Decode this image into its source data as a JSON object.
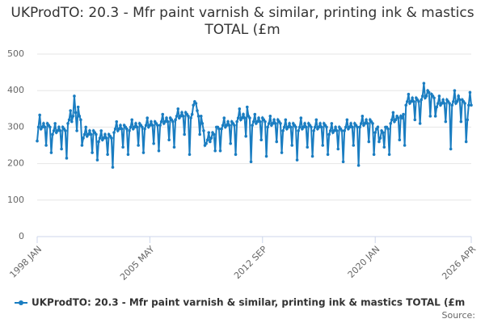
{
  "chart_data": {
    "type": "line",
    "title": "UKProdTO: 20.3 - Mfr paint varnish & similar, printing ink & mastics TOTAL (£m",
    "source": "Source:",
    "categories": [
      "1998 JAN",
      null,
      null,
      null,
      null,
      null,
      null,
      null,
      null,
      null,
      null,
      null,
      null,
      null,
      null,
      null,
      null,
      null,
      null,
      null,
      null,
      null,
      null,
      null,
      null,
      null,
      null,
      null,
      null,
      null,
      null,
      null,
      null,
      null,
      null,
      null,
      null,
      null,
      null,
      null,
      null,
      null,
      null,
      null,
      null,
      null,
      null,
      null,
      null,
      null,
      null,
      null,
      null,
      null,
      null,
      null,
      null,
      null,
      null,
      null,
      null,
      null,
      null,
      null,
      null,
      null,
      null,
      null,
      null,
      null,
      null,
      null,
      null,
      null,
      null,
      null,
      null,
      null,
      null,
      null,
      null,
      null,
      null,
      null,
      null,
      null,
      null,
      null,
      "2005 MAY",
      null,
      null,
      null,
      null,
      null,
      null,
      null,
      null,
      null,
      null,
      null,
      null,
      null,
      null,
      null,
      null,
      null,
      null,
      null,
      null,
      null,
      null,
      null,
      null,
      null,
      null,
      null,
      null,
      null,
      null,
      null,
      null,
      null,
      null,
      null,
      null,
      null,
      null,
      null,
      null,
      null,
      null,
      null,
      null,
      null,
      null,
      null,
      null,
      null,
      null,
      null,
      null,
      null,
      null,
      null,
      null,
      null,
      null,
      null,
      null,
      null,
      null,
      null,
      null,
      null,
      null,
      null,
      null,
      null,
      null,
      null,
      null,
      null,
      null,
      null,
      null,
      null,
      null,
      null,
      null,
      null,
      null,
      null,
      null,
      null,
      null,
      null,
      "2012 SEP",
      null,
      null,
      null,
      null,
      null,
      null,
      null,
      null,
      null,
      null,
      null,
      null,
      null,
      null,
      null,
      null,
      null,
      null,
      null,
      null,
      null,
      null,
      null,
      null,
      null,
      null,
      null,
      null,
      null,
      null,
      null,
      null,
      null,
      null,
      null,
      null,
      null,
      null,
      null,
      null,
      null,
      null,
      null,
      null,
      null,
      null,
      null,
      null,
      null,
      null,
      null,
      null,
      null,
      null,
      null,
      null,
      null,
      null,
      null,
      null,
      null,
      null,
      null,
      null,
      null,
      null,
      null,
      null,
      null,
      null,
      null,
      null,
      null,
      null,
      null,
      null,
      null,
      null,
      null,
      null,
      null,
      null,
      null,
      null,
      null,
      null,
      null,
      "2020 JAN",
      null,
      null,
      null,
      null,
      null,
      null,
      null,
      null,
      null,
      null,
      null,
      null,
      null,
      null,
      null,
      null,
      null,
      null,
      null,
      null,
      null,
      null,
      null,
      null,
      null,
      null,
      null,
      null,
      null,
      null,
      null,
      null,
      null,
      null,
      null,
      null,
      null,
      null,
      null,
      null,
      null,
      null,
      null,
      null,
      null,
      null,
      null,
      null,
      null,
      null,
      null,
      null,
      null,
      null,
      null,
      null,
      null,
      null,
      null,
      null,
      null,
      null,
      null,
      null,
      null,
      null,
      null,
      null,
      null,
      null,
      null,
      null,
      null,
      null,
      "2026 APR"
    ],
    "series": [
      {
        "name": "UKProdTO: 20.3 - Mfr paint varnish & similar, printing ink & mastics TOTAL (£m",
        "color": "#1a7dc1",
        "values": [
          262,
          300,
          333,
          295,
          300,
          310,
          300,
          250,
          310,
          305,
          300,
          230,
          280,
          290,
          310,
          285,
          290,
          300,
          290,
          240,
          300,
          295,
          290,
          215,
          310,
          320,
          345,
          315,
          330,
          385,
          340,
          290,
          355,
          330,
          320,
          250,
          270,
          280,
          300,
          275,
          280,
          290,
          280,
          230,
          290,
          285,
          280,
          210,
          260,
          270,
          290,
          265,
          270,
          280,
          270,
          225,
          280,
          275,
          270,
          190,
          285,
          295,
          315,
          290,
          295,
          305,
          295,
          245,
          305,
          300,
          295,
          225,
          290,
          300,
          320,
          295,
          300,
          310,
          300,
          250,
          310,
          305,
          300,
          230,
          295,
          305,
          325,
          300,
          305,
          315,
          305,
          255,
          315,
          310,
          305,
          235,
          305,
          315,
          335,
          310,
          315,
          325,
          315,
          265,
          325,
          320,
          315,
          245,
          320,
          330,
          350,
          325,
          330,
          340,
          330,
          280,
          340,
          335,
          330,
          225,
          325,
          335,
          360,
          370,
          365,
          345,
          330,
          280,
          330,
          310,
          290,
          250,
          255,
          265,
          285,
          260,
          270,
          285,
          280,
          235,
          300,
          300,
          295,
          235,
          295,
          305,
          325,
          300,
          305,
          315,
          305,
          255,
          315,
          310,
          305,
          225,
          315,
          325,
          350,
          320,
          325,
          335,
          325,
          275,
          355,
          330,
          325,
          205,
          305,
          315,
          335,
          310,
          315,
          325,
          315,
          265,
          325,
          320,
          315,
          220,
          300,
          310,
          330,
          305,
          310,
          320,
          310,
          260,
          320,
          315,
          310,
          230,
          290,
          300,
          320,
          295,
          300,
          310,
          300,
          250,
          310,
          305,
          300,
          210,
          290,
          300,
          325,
          295,
          300,
          310,
          300,
          245,
          310,
          305,
          300,
          220,
          290,
          300,
          320,
          295,
          300,
          310,
          300,
          250,
          310,
          305,
          300,
          225,
          280,
          290,
          310,
          285,
          290,
          300,
          290,
          240,
          300,
          295,
          290,
          205,
          290,
          300,
          320,
          295,
          300,
          310,
          300,
          250,
          310,
          305,
          300,
          195,
          300,
          310,
          330,
          305,
          310,
          320,
          310,
          260,
          320,
          315,
          310,
          225,
          285,
          295,
          300,
          260,
          270,
          290,
          285,
          245,
          300,
          300,
          295,
          225,
          310,
          320,
          340,
          315,
          320,
          330,
          325,
          265,
          330,
          325,
          335,
          250,
          360,
          370,
          390,
          365,
          370,
          380,
          370,
          320,
          380,
          375,
          370,
          310,
          375,
          385,
          420,
          380,
          385,
          400,
          395,
          330,
          390,
          385,
          380,
          330,
          355,
          365,
          385,
          360,
          365,
          375,
          365,
          315,
          375,
          370,
          365,
          240,
          360,
          370,
          400,
          365,
          370,
          385,
          375,
          315,
          375,
          370,
          365,
          260,
          320,
          360,
          395,
          360
        ]
      }
    ],
    "ylim": [
      0,
      500
    ],
    "yticks": [
      0,
      100,
      200,
      300,
      400,
      500
    ],
    "grid": true
  }
}
